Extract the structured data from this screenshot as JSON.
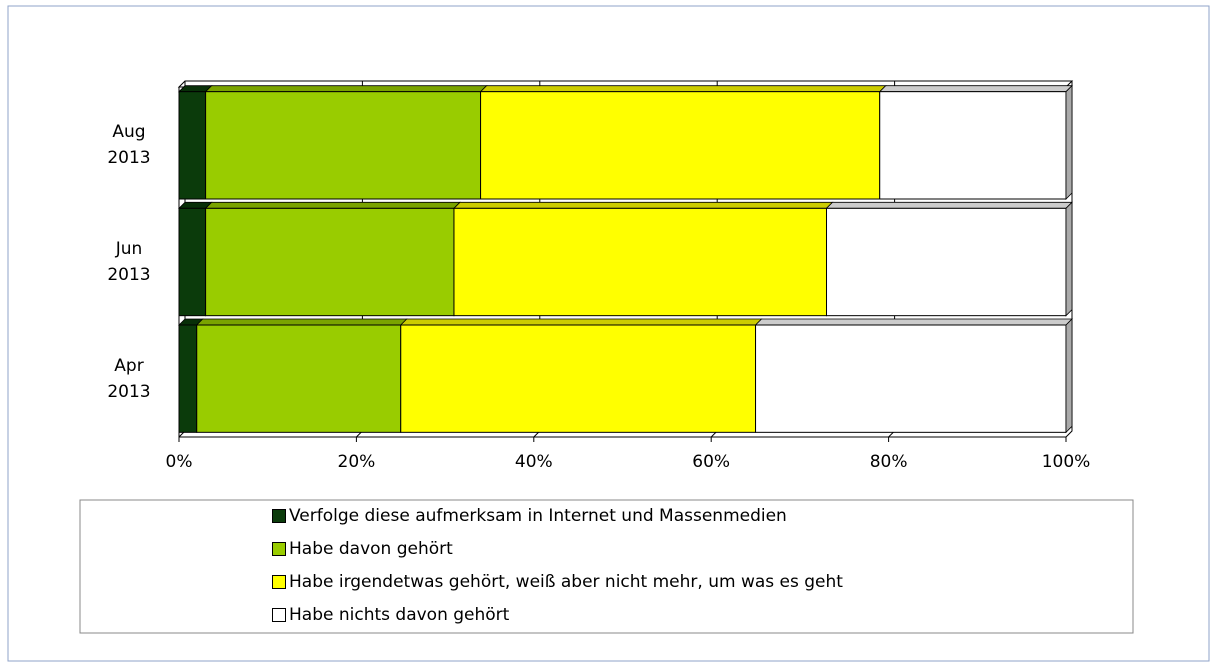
{
  "chart_data": {
    "type": "stacked-bar-horizontal",
    "categories": [
      "Apr 2013",
      "Jun 2013",
      "Aug 2013"
    ],
    "series": [
      {
        "name": "Verfolge diese aufmerksam in Internet und Massenmedien",
        "color": "#0b3b0b",
        "values": [
          2,
          3,
          3
        ]
      },
      {
        "name": "Habe davon gehört",
        "color": "#99cc00",
        "values": [
          23,
          28,
          31
        ]
      },
      {
        "name": "Habe irgendetwas gehört, weiß aber nicht mehr, um was es geht",
        "color": "#ffff00",
        "values": [
          40,
          42,
          45
        ]
      },
      {
        "name": "Habe nichts davon gehört",
        "color": "#ffffff",
        "values": [
          35,
          27,
          21
        ]
      }
    ],
    "xlim": [
      0,
      100
    ],
    "xticks": [
      {
        "value": 0,
        "label": "0%"
      },
      {
        "value": 20,
        "label": "20%"
      },
      {
        "value": 40,
        "label": "40%"
      },
      {
        "value": 60,
        "label": "60%"
      },
      {
        "value": 80,
        "label": "80%"
      },
      {
        "value": 100,
        "label": "100%"
      }
    ],
    "grid": true,
    "legend": "bottom"
  }
}
